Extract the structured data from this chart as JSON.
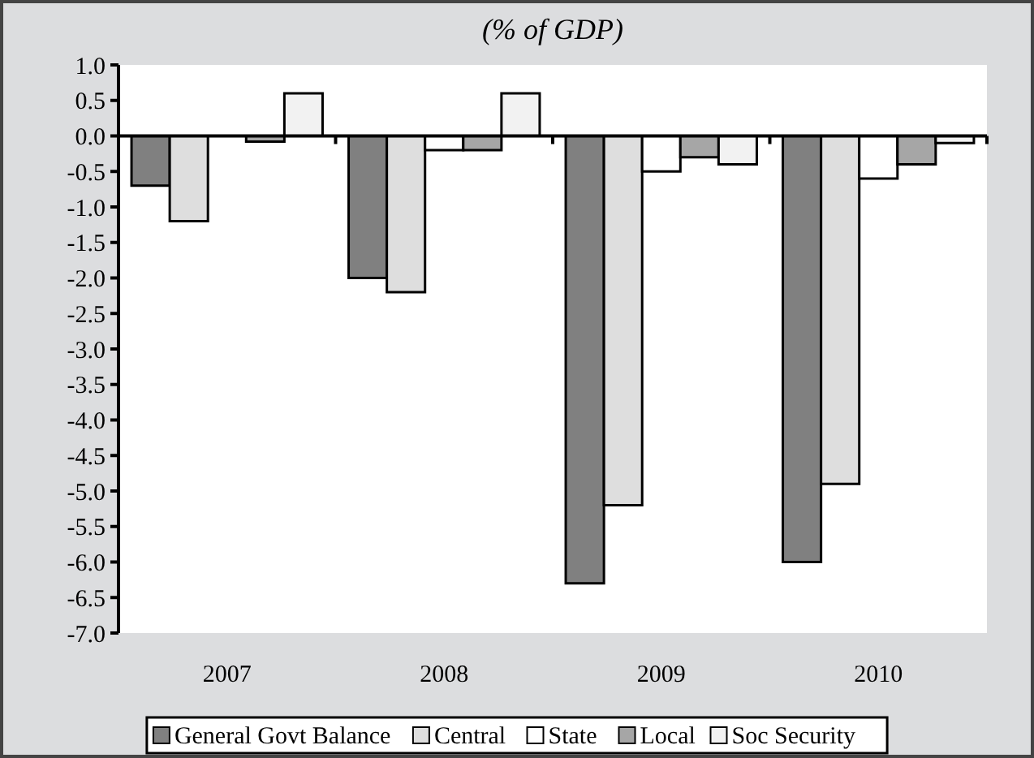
{
  "chart_data": {
    "type": "bar",
    "title": "(% of GDP)",
    "categories": [
      "2007",
      "2008",
      "2009",
      "2010"
    ],
    "series": [
      {
        "name": "General Govt Balance",
        "color": "#808080",
        "values": [
          -0.7,
          -2.0,
          -6.3,
          -6.0
        ]
      },
      {
        "name": "Central",
        "color": "#dedede",
        "values": [
          -1.2,
          -2.2,
          -5.2,
          -4.9
        ]
      },
      {
        "name": "State",
        "color": "#ffffff",
        "values": [
          0,
          -0.2,
          -0.5,
          -0.6
        ]
      },
      {
        "name": "Local",
        "color": "#a6a6a6",
        "values": [
          -0.08,
          -0.2,
          -0.3,
          -0.4
        ]
      },
      {
        "name": "Soc Security",
        "color": "#f2f2f2",
        "values": [
          0.6,
          0.6,
          -0.4,
          -0.1
        ]
      }
    ],
    "ylim": [
      -7,
      1
    ],
    "yticks": [
      {
        "value": 1,
        "label": "1.0"
      },
      {
        "value": 0.5,
        "label": "0.5"
      },
      {
        "value": 0,
        "label": "0.0"
      },
      {
        "value": -0.5,
        "label": "-0.5"
      },
      {
        "value": -1,
        "label": "-1.0"
      },
      {
        "value": -1.5,
        "label": "-1.5"
      },
      {
        "value": -2,
        "label": "-2.0"
      },
      {
        "value": -2.5,
        "label": "-2.5"
      },
      {
        "value": -3,
        "label": "-3.0"
      },
      {
        "value": -3.5,
        "label": "-3.5"
      },
      {
        "value": -4,
        "label": "-4.0"
      },
      {
        "value": -4.5,
        "label": "-4.5"
      },
      {
        "value": -5,
        "label": "-5.0"
      },
      {
        "value": -5.5,
        "label": "-5.5"
      },
      {
        "value": -6,
        "label": "-6.0"
      },
      {
        "value": -6.5,
        "label": "-6.5"
      },
      {
        "value": -7,
        "label": "-7.0"
      }
    ],
    "legend": "bottom"
  }
}
